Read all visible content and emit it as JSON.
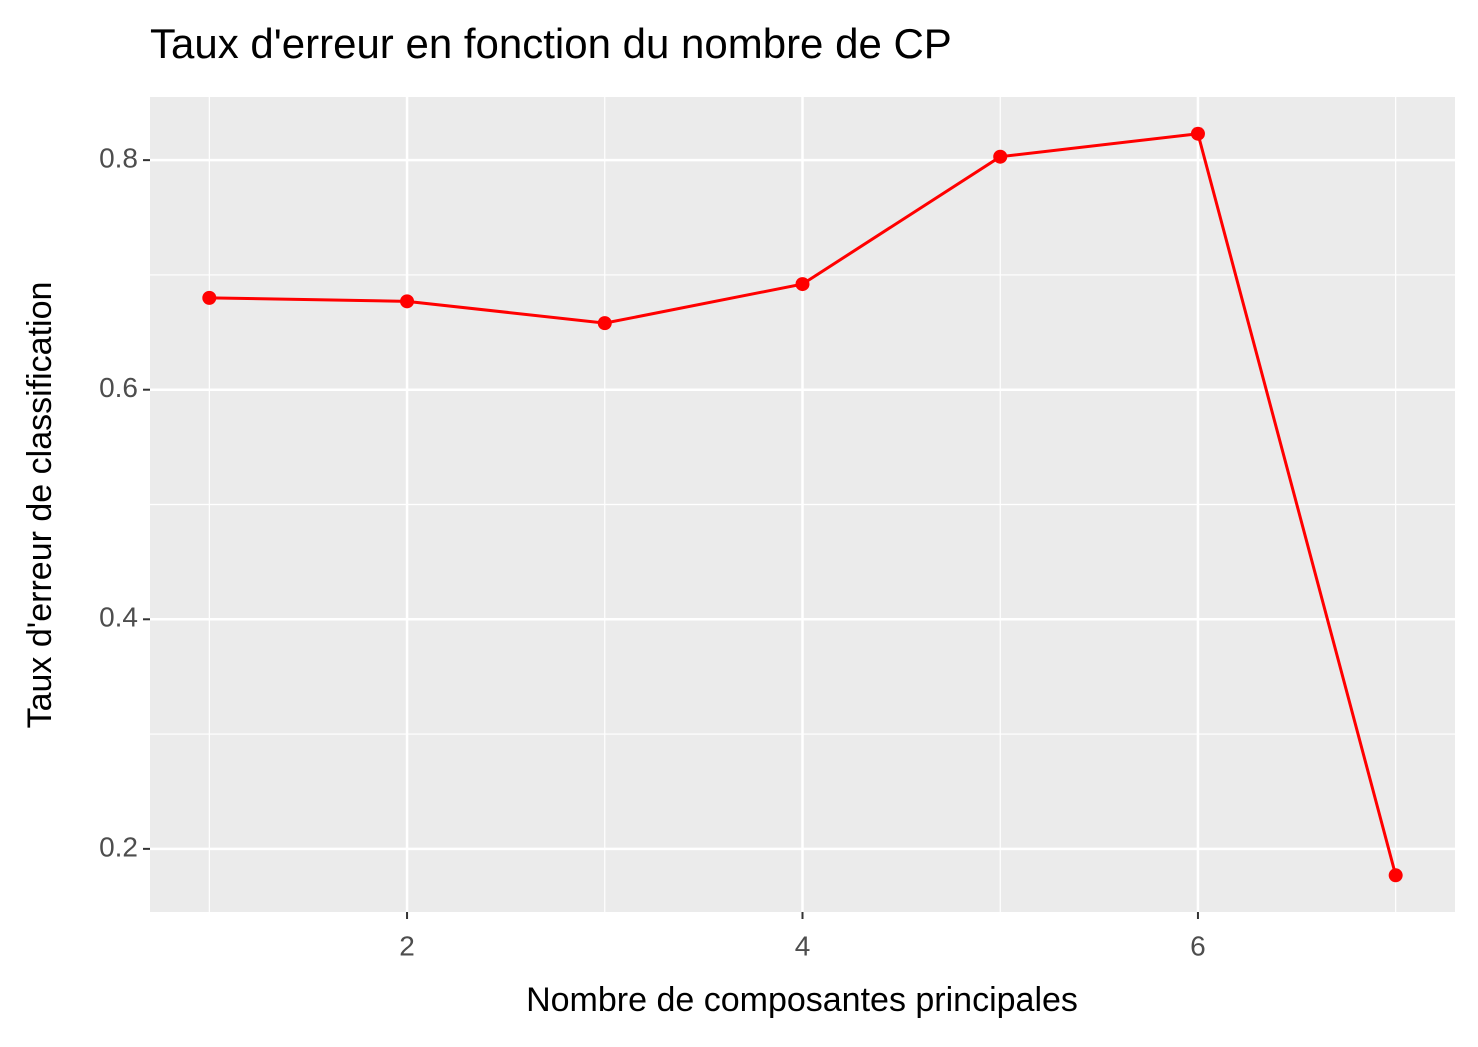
{
  "chart_data": {
    "type": "line",
    "title": "Taux d'erreur en fonction du nombre de CP",
    "x_label": "Nombre de composantes principales",
    "y_label": "Taux d'erreur de classification",
    "x": [
      1,
      2,
      3,
      4,
      5,
      6,
      7
    ],
    "series": [
      {
        "color": "#ff0000",
        "values": [
          0.68,
          0.677,
          0.658,
          0.692,
          0.803,
          0.823,
          0.177
        ]
      }
    ],
    "xlim": [
      0.7,
      7.3
    ],
    "xticks": [
      2,
      4,
      6
    ],
    "x_minor_grid": [
      1,
      3,
      5,
      7
    ],
    "ylim": [
      0.145,
      0.855
    ],
    "yticks": [
      0.2,
      0.4,
      0.6,
      0.8
    ],
    "y_minor_grid": [
      0.3,
      0.5,
      0.7
    ],
    "grid": true
  }
}
